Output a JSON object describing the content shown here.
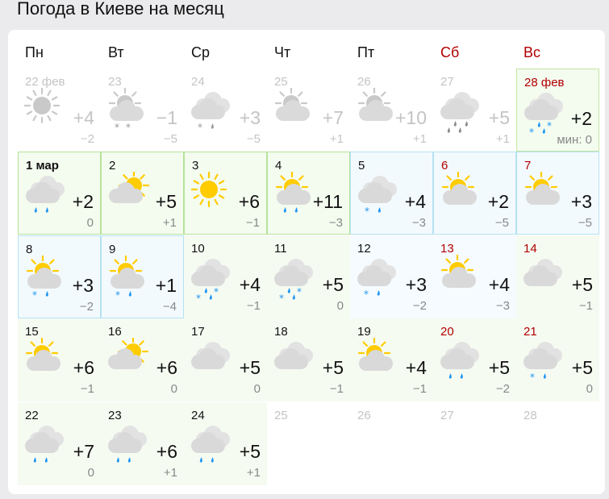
{
  "title": "Погода в Киеве на месяц",
  "weekdays": [
    {
      "label": "Пн",
      "weekend": false
    },
    {
      "label": "Вт",
      "weekend": false
    },
    {
      "label": "Ср",
      "weekend": false
    },
    {
      "label": "Чт",
      "weekend": false
    },
    {
      "label": "Пт",
      "weekend": false
    },
    {
      "label": "Сб",
      "weekend": true
    },
    {
      "label": "Вс",
      "weekend": true
    }
  ],
  "colors": {
    "weekend": "#b00000",
    "sun": "#ffcc00",
    "cloud": "#d9d9d9",
    "precip": "#2196f3",
    "past": "#c4c4c4"
  },
  "days": [
    {
      "date": "22 фев",
      "kind": "past",
      "icon": "sun",
      "precip": "",
      "max": "+4",
      "min": "−2"
    },
    {
      "date": "23",
      "kind": "past",
      "icon": "partly",
      "precip": "**",
      "max": "−1",
      "min": "−5"
    },
    {
      "date": "24",
      "kind": "past",
      "icon": "cloudy",
      "precip": "*d",
      "max": "+3",
      "min": "−5"
    },
    {
      "date": "25",
      "kind": "past",
      "icon": "partly",
      "precip": "",
      "max": "+7",
      "min": "+1"
    },
    {
      "date": "26",
      "kind": "past",
      "icon": "partly",
      "precip": "",
      "max": "+10",
      "min": "+1"
    },
    {
      "date": "27",
      "kind": "past",
      "icon": "cloudy",
      "precip": "dd/dd",
      "max": "+5",
      "min": "+1"
    },
    {
      "date": "28 фев",
      "kind": "today",
      "icon": "cloudy",
      "precip": "d*/*d",
      "max": "+2",
      "min": "мин: 0"
    },
    {
      "date": "1 мар",
      "kind": "green-bordered",
      "bold": true,
      "icon": "cloudy",
      "precip": "dd",
      "max": "+2",
      "min": "0"
    },
    {
      "date": "2",
      "kind": "green-bordered",
      "icon": "partly-side",
      "precip": "",
      "max": "+5",
      "min": "+1"
    },
    {
      "date": "3",
      "kind": "green-bordered",
      "icon": "sun",
      "precip": "",
      "max": "+6",
      "min": "−1"
    },
    {
      "date": "4",
      "kind": "green-bordered",
      "icon": "partly",
      "precip": "dd",
      "max": "+11",
      "min": "−3"
    },
    {
      "date": "5",
      "kind": "blue-bordered",
      "icon": "cloudy",
      "precip": "*d",
      "max": "+4",
      "min": "−3"
    },
    {
      "date": "6",
      "kind": "blue-bordered",
      "icon": "partly",
      "precip": "",
      "max": "+2",
      "min": "−5"
    },
    {
      "date": "7",
      "kind": "blue-bordered",
      "icon": "partly",
      "precip": "",
      "max": "+3",
      "min": "−5"
    },
    {
      "date": "8",
      "kind": "blue-bordered",
      "icon": "partly",
      "precip": "*d",
      "max": "+3",
      "min": "−2"
    },
    {
      "date": "9",
      "kind": "blue-bordered",
      "icon": "partly",
      "precip": "*d",
      "max": "+1",
      "min": "−4"
    },
    {
      "date": "10",
      "kind": "green",
      "icon": "cloudy",
      "precip": "d*/*d",
      "max": "+4",
      "min": "−1"
    },
    {
      "date": "11",
      "kind": "green",
      "icon": "cloudy",
      "precip": "d*/*d",
      "max": "+5",
      "min": "0"
    },
    {
      "date": "12",
      "kind": "blue",
      "icon": "cloudy",
      "precip": "*d",
      "max": "+3",
      "min": "−2"
    },
    {
      "date": "13",
      "kind": "blue",
      "icon": "partly",
      "precip": "",
      "max": "+4",
      "min": "−3"
    },
    {
      "date": "14",
      "kind": "green",
      "icon": "cloudy",
      "precip": "",
      "max": "+5",
      "min": "−1"
    },
    {
      "date": "15",
      "kind": "green",
      "icon": "partly",
      "precip": "",
      "max": "+6",
      "min": "−1"
    },
    {
      "date": "16",
      "kind": "green",
      "icon": "partly-side",
      "precip": "",
      "max": "+6",
      "min": "0"
    },
    {
      "date": "17",
      "kind": "green",
      "icon": "cloudy",
      "precip": "",
      "max": "+5",
      "min": "0"
    },
    {
      "date": "18",
      "kind": "green",
      "icon": "cloudy",
      "precip": "",
      "max": "+5",
      "min": "−1"
    },
    {
      "date": "19",
      "kind": "green",
      "icon": "partly",
      "precip": "",
      "max": "+4",
      "min": "−1"
    },
    {
      "date": "20",
      "kind": "green",
      "icon": "cloudy",
      "precip": "dd",
      "max": "+5",
      "min": "−2"
    },
    {
      "date": "21",
      "kind": "green",
      "icon": "cloudy",
      "precip": "*d",
      "max": "+5",
      "min": "0"
    },
    {
      "date": "22",
      "kind": "green",
      "icon": "cloudy",
      "precip": "dd",
      "max": "+7",
      "min": "0"
    },
    {
      "date": "23",
      "kind": "green",
      "icon": "cloudy",
      "precip": "dd",
      "max": "+6",
      "min": "+1"
    },
    {
      "date": "24",
      "kind": "green",
      "icon": "cloudy",
      "precip": "dd",
      "max": "+5",
      "min": "+1"
    },
    {
      "date": "25",
      "kind": "empty"
    },
    {
      "date": "26",
      "kind": "empty"
    },
    {
      "date": "27",
      "kind": "empty"
    },
    {
      "date": "28",
      "kind": "empty"
    }
  ]
}
